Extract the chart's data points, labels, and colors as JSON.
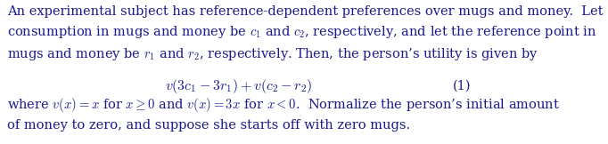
{
  "figsize": [
    6.82,
    1.62
  ],
  "dpi": 100,
  "background_color": "#ffffff",
  "paragraph1_line1": "An experimental subject has reference-dependent preferences over mugs and money.  Let",
  "paragraph1_line2": "consumption in mugs and money be $c_1$ and $c_2$, respectively, and let the reference point in",
  "paragraph1_line3": "mugs and money be $r_1$ and $r_2$, respectively. Then, the person’s utility is given by",
  "equation": "$v(3c_1 - 3r_1) + v(c_2 - r_2)$",
  "equation_number": "(1)",
  "paragraph2_line1": "where $v(x) = x$ for $x \\geq 0$ and $v(x) = 3x$ for $x < 0$.  Normalize the person’s initial amount",
  "paragraph2_line2": "of money to zero, and suppose she starts off with zero mugs.",
  "font_size": 10.5,
  "text_color": "#1a1a8c"
}
